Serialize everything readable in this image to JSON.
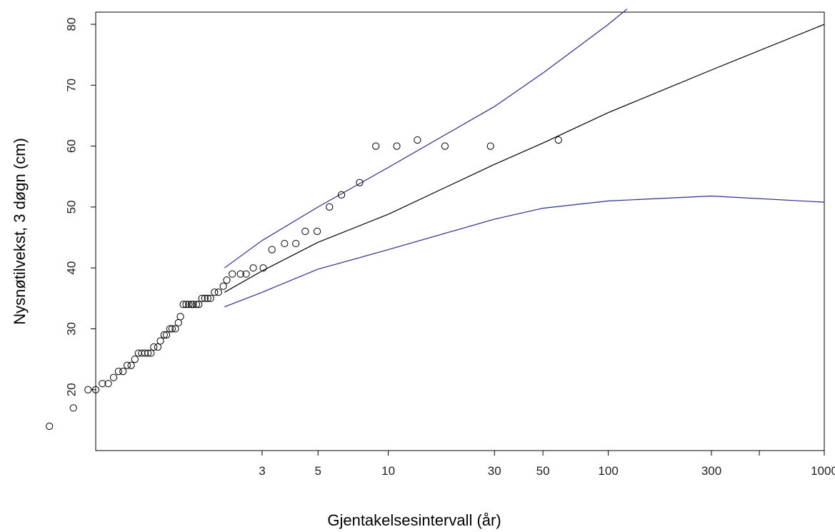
{
  "chart_data": {
    "type": "scatter",
    "title": "",
    "xlabel": "Gjentakelsesintervall (år)",
    "ylabel": "Nysnøtilvekst, 3 døgn (cm)",
    "x_scale": "gumbel-reduced-variate",
    "xlim": [
      1.1,
      1000
    ],
    "ylim": [
      10,
      82
    ],
    "x_ticks": [
      3,
      5,
      10,
      30,
      50,
      100,
      300,
      1000
    ],
    "x_tick_labels": [
      "3",
      "5",
      "10",
      "30",
      "50",
      "100",
      "300",
      "1000"
    ],
    "x_minor_ticks": [
      500
    ],
    "y_ticks": [
      20,
      30,
      40,
      50,
      60,
      70,
      80
    ],
    "y_tick_labels": [
      "20",
      "30",
      "40",
      "50",
      "60",
      "70",
      "80"
    ],
    "grid": false,
    "legend": "none",
    "colors": {
      "points": "#000000",
      "fit": "#000000",
      "confidence": "#2b2b8a"
    },
    "series": [
      {
        "kind": "points",
        "x": [
          1.02,
          1.05,
          1.08,
          1.1,
          1.12,
          1.14,
          1.16,
          1.18,
          1.2,
          1.22,
          1.24,
          1.26,
          1.28,
          1.3,
          1.32,
          1.34,
          1.36,
          1.38,
          1.41,
          1.43,
          1.46,
          1.48,
          1.51,
          1.53,
          1.56,
          1.59,
          1.61,
          1.64,
          1.67,
          1.7,
          1.73,
          1.75,
          1.79,
          1.82,
          1.86,
          1.9,
          1.94,
          1.98,
          2.04,
          2.1,
          2.18,
          2.24,
          2.34,
          2.5,
          2.62,
          2.78,
          3.03,
          3.27,
          3.66,
          4.06,
          4.43,
          4.96,
          5.58,
          6.27,
          7.5,
          8.82,
          10.9,
          13.46,
          17.89,
          28.78,
          58.9
        ],
        "y": [
          14,
          17,
          20,
          20,
          21,
          21,
          22,
          23,
          23,
          24,
          24,
          25,
          26,
          26,
          26,
          26,
          26,
          27,
          27,
          28,
          29,
          29,
          30,
          30,
          30,
          31,
          32,
          34,
          34,
          34,
          34,
          34,
          34,
          34,
          35,
          35,
          35,
          35,
          36,
          36,
          37,
          38,
          39,
          39,
          39,
          40,
          40,
          43,
          44,
          44,
          46,
          46,
          50,
          52,
          54,
          60,
          60,
          61,
          60,
          60,
          61
        ]
      },
      {
        "kind": "line",
        "name": "",
        "x": [
          2.2,
          3,
          5,
          10,
          30,
          50,
          100,
          300,
          1000
        ],
        "y": [
          36,
          39.5,
          44.2,
          48.8,
          57.0,
          60.5,
          65.5,
          72.5,
          80.0
        ]
      },
      {
        "kind": "line",
        "name": "",
        "x": [
          2.2,
          3,
          5,
          10,
          30,
          50,
          100,
          122
        ],
        "y": [
          40,
          44.5,
          50.0,
          56.5,
          66.5,
          72.0,
          80.0,
          82.5
        ]
      },
      {
        "kind": "line",
        "name": "",
        "x": [
          2.2,
          3,
          5,
          10,
          30,
          50,
          100,
          300,
          1000
        ],
        "y": [
          33.6,
          36.0,
          39.8,
          43.0,
          48.0,
          49.8,
          51.0,
          51.8,
          50.8
        ]
      }
    ]
  }
}
